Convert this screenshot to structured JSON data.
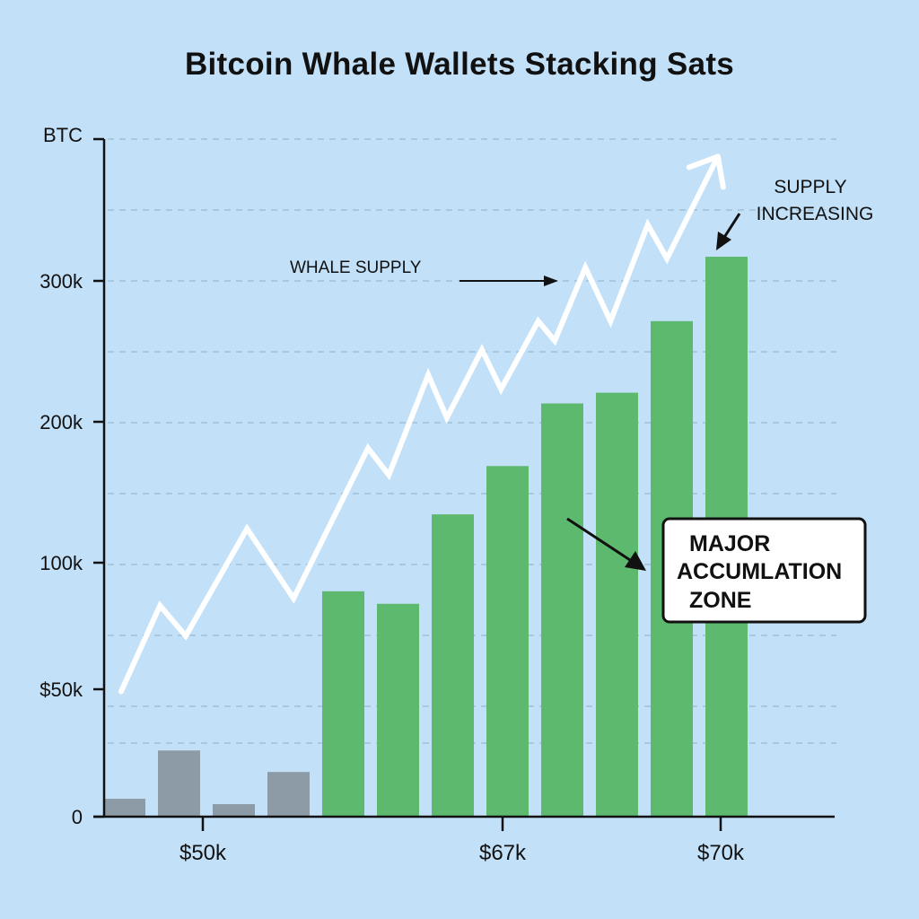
{
  "chart_data": {
    "type": "bar",
    "title": "Bitcoin Whale Wallets Stacking Sats",
    "ylabel": "BTC",
    "xlabel": "",
    "y_tick_labels": [
      "0",
      "$50k",
      "100k",
      "200k",
      "300k"
    ],
    "x_tick_labels": [
      "$50k",
      "$67k",
      "$70k"
    ],
    "ylim": [
      0,
      380000
    ],
    "grid": true,
    "bars": {
      "values": [
        10000,
        37000,
        7000,
        25000,
        126000,
        119000,
        169000,
        196000,
        231000,
        237000,
        277000,
        313000
      ],
      "colors": [
        "#8c9ba6",
        "#8c9ba6",
        "#8c9ba6",
        "#8c9ba6",
        "#5cb96d",
        "#5cb96d",
        "#5cb96d",
        "#5cb96d",
        "#5cb96d",
        "#5cb96d",
        "#5cb96d",
        "#5cb96d"
      ]
    },
    "line": {
      "color": "#ffffff",
      "x": [
        -0.05,
        0.66,
        1.13,
        2.25,
        3.1,
        4.46,
        4.84,
        5.56,
        5.9,
        6.54,
        6.89,
        7.57,
        7.87,
        8.43,
        8.89,
        9.57,
        9.92,
        10.85
      ],
      "y": [
        70000,
        118000,
        101000,
        161000,
        122000,
        206000,
        191000,
        247000,
        223000,
        261000,
        239000,
        277000,
        266000,
        307000,
        277000,
        331000,
        312000,
        369000
      ]
    },
    "annotations": {
      "whale_supply": "WHALE SUPPLY",
      "supply_increasing": [
        "SUPPLY",
        "INCREASING"
      ],
      "accumulation_zone": [
        "MAJOR",
        "ACCUMLATION",
        "ZONE"
      ]
    },
    "colors": {
      "background": "#c2e0f8",
      "accumulation": "#5cb96d",
      "early": "#8c9ba6",
      "supply_line": "#ffffff"
    }
  }
}
